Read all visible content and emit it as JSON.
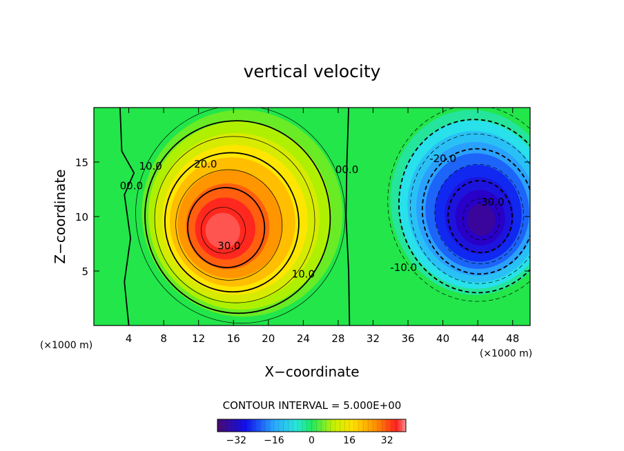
{
  "chart_data": {
    "type": "heatmap",
    "title": "vertical velocity",
    "xlabel": "X−coordinate",
    "ylabel": "Z−coordinate",
    "x_unit": "(×1000 m)",
    "xlim": [
      0,
      50
    ],
    "ylim": [
      0,
      20
    ],
    "x_ticks": [
      4,
      8,
      12,
      16,
      20,
      24,
      28,
      32,
      36,
      40,
      44,
      48
    ],
    "x_tick_labels": [
      "4",
      "8",
      "12",
      "16",
      "20",
      "24",
      "28",
      "32",
      "36",
      "40",
      "44",
      "48"
    ],
    "y_ticks": [
      5,
      10,
      15
    ],
    "y_tick_labels": [
      "5",
      "10",
      "15"
    ],
    "contour_interval_text": "CONTOUR INTERVAL = 5.000E+00",
    "colorbar": {
      "range": [
        -40,
        40
      ],
      "ticks": [
        -32,
        -16,
        0,
        16,
        32
      ],
      "tick_labels": [
        "−32",
        "−16",
        "0",
        "16",
        "32"
      ]
    },
    "features": [
      {
        "name": "updraft",
        "center": [
          14.5,
          8.5
        ],
        "peak": 36
      },
      {
        "name": "downdraft",
        "center": [
          44.5,
          9.5
        ],
        "peak": -36
      }
    ],
    "contour_labels": [
      {
        "text": "10.0",
        "x": 6.5,
        "z": 14.3
      },
      {
        "text": "20.0",
        "x": 12.8,
        "z": 14.5
      },
      {
        "text": "30.0",
        "x": 15.5,
        "z": 7.0
      },
      {
        "text": "10.0",
        "x": 24.0,
        "z": 4.4
      },
      {
        "text": "00.0",
        "x": 4.3,
        "z": 12.5
      },
      {
        "text": "00.0",
        "x": 29.0,
        "z": 14.0
      },
      {
        "text": "-20.0",
        "x": 40.0,
        "z": 15.0
      },
      {
        "text": "-30.0",
        "x": 45.5,
        "z": 11.0
      },
      {
        "text": "-10.0",
        "x": 35.5,
        "z": 5.0
      }
    ],
    "grid": false
  }
}
